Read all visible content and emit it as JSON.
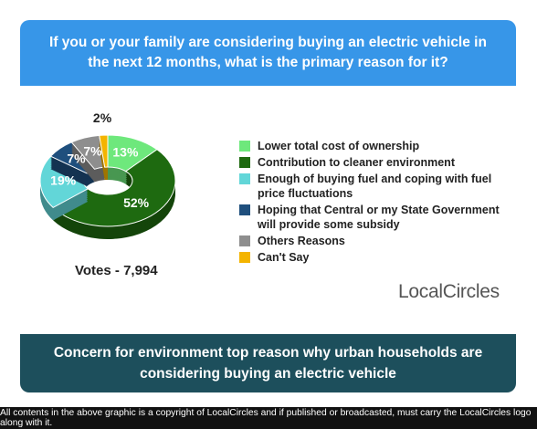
{
  "chart_data": {
    "type": "pie",
    "title": "If you or your family are considering buying an electric vehicle in the next 12 months, what is the primary reason for it?",
    "categories": [
      "Lower total cost of ownership",
      "Contribution to cleaner environment",
      "Enough of buying fuel and coping with fuel price fluctuations",
      "Hoping that Central or my State Government will provide some subsidy",
      "Others Reasons",
      "Can't Say"
    ],
    "values": [
      13,
      52,
      19,
      7,
      7,
      2
    ],
    "value_labels": [
      "13%",
      "52%",
      "19%",
      "7%",
      "7%",
      "2%"
    ],
    "colors": [
      "#6ee87c",
      "#1e6a10",
      "#62d6d8",
      "#1f4f7d",
      "#8e8e8e",
      "#f4b400"
    ],
    "votes": "Votes - 7,994",
    "logo": "LocalCircles",
    "headline": "Concern for environment top reason why urban households are considering buying an electric vehicle",
    "footer": "All contents in the above graphic is a copyright of LocalCircles and if published or broadcasted, must carry the LocalCircles logo along with it."
  }
}
